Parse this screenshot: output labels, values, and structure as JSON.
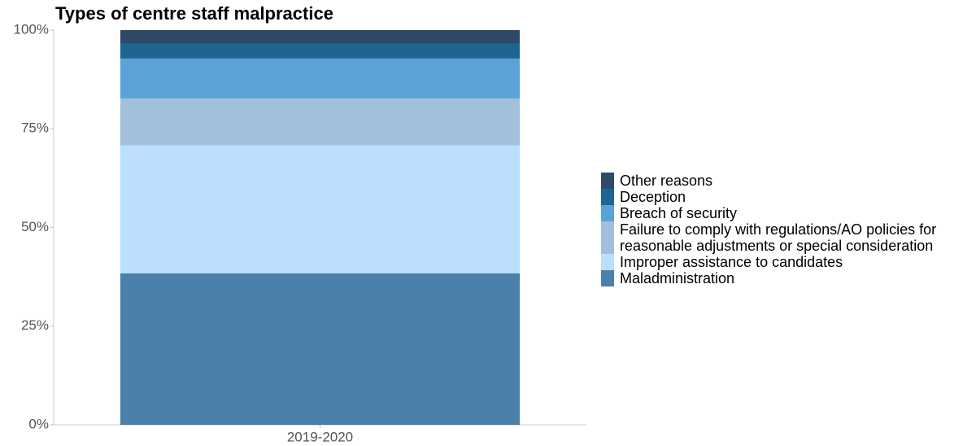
{
  "chart_data": {
    "type": "stacked_bar",
    "title": "Types of centre staff malpractice",
    "categories": [
      "2019-2020"
    ],
    "series": [
      {
        "name": "Maladministration",
        "color": "#4a80aa",
        "values": [
          38.4
        ]
      },
      {
        "name": "Improper assistance to candidates",
        "color": "#bbdffc",
        "values": [
          32.4
        ]
      },
      {
        "name": "Failure to comply with regulations/AO policies for reasonable adjustments or special consideration",
        "color": "#a2bfdc",
        "values": [
          11.9
        ]
      },
      {
        "name": "Breach of security",
        "color": "#5ba3d6",
        "values": [
          10.1
        ]
      },
      {
        "name": "Deception",
        "color": "#1f6591",
        "values": [
          3.9
        ]
      },
      {
        "name": "Other reasons",
        "color": "#2e4a66",
        "values": [
          3.3
        ]
      }
    ],
    "ylim": [
      0,
      100
    ],
    "yticks": [
      {
        "value": 0,
        "label": "0%"
      },
      {
        "value": 25,
        "label": "25%"
      },
      {
        "value": 50,
        "label": "50%"
      },
      {
        "value": 75,
        "label": "75%"
      },
      {
        "value": 100,
        "label": "100%"
      }
    ],
    "legend": "right"
  }
}
